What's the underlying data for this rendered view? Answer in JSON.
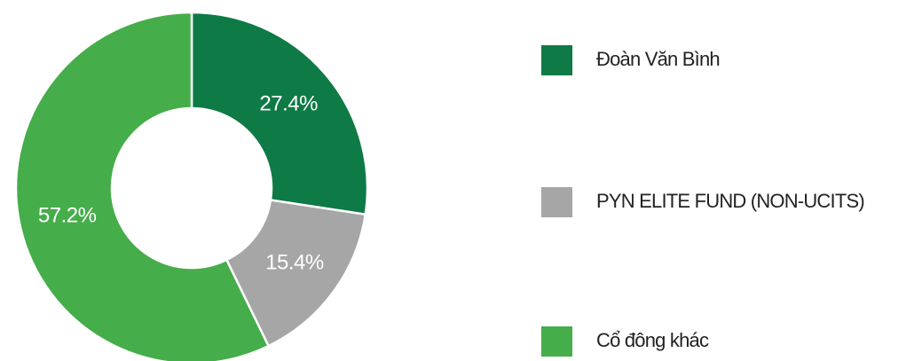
{
  "chart_data": {
    "type": "donut",
    "categories": [
      "Đoàn Văn Bình",
      "PYN ELITE FUND (NON-UCITS)",
      "Cổ đông khác"
    ],
    "values": [
      27.4,
      15.4,
      57.2
    ],
    "value_labels": [
      "27.4%",
      "15.4%",
      "57.2%"
    ],
    "colors": [
      "#0e7a45",
      "#a6a6a6",
      "#45ad4a"
    ],
    "legend": "right"
  }
}
